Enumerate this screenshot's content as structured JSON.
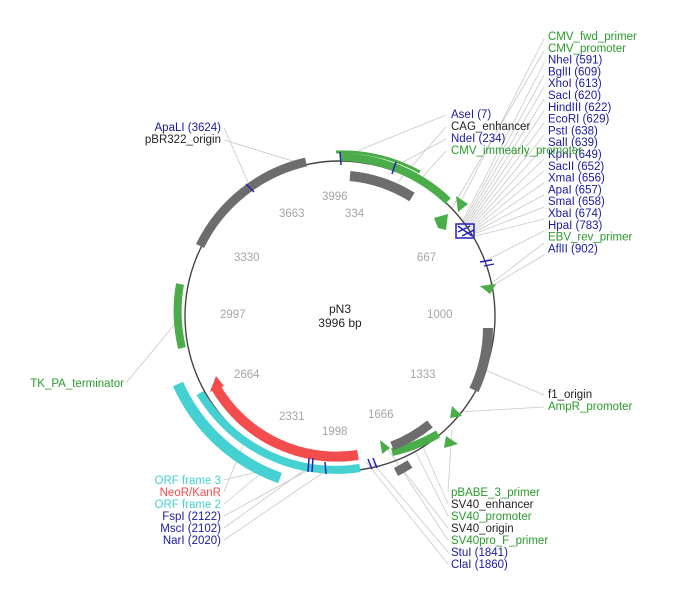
{
  "plasmid": {
    "name": "pN3",
    "size": "3996 bp",
    "length": 3996
  },
  "colors": {
    "enzyme": "#1a1aa0",
    "primer": "#2a9a2a",
    "promoter_fill": "#4aad4a",
    "backbone_gray": "#6d6d6d",
    "orf_cyan": "#45d1d1",
    "neo_red": "#f24c4c",
    "ring": "#444444",
    "tick_text": "#a5a5a5",
    "site_mark": "#2222bb"
  },
  "ticks": [
    "334",
    "667",
    "1000",
    "1333",
    "1666",
    "1998",
    "2331",
    "2664",
    "2997",
    "3330",
    "3663",
    "3996"
  ],
  "labels": {
    "top_right": [
      {
        "text": "CMV_fwd_primer",
        "type": "primer"
      },
      {
        "text": "CMV_promoter",
        "type": "primer"
      },
      {
        "text": "NheI (591)",
        "type": "enzyme"
      },
      {
        "text": "BglII (609)",
        "type": "enzyme"
      },
      {
        "text": "XhoI (613)",
        "type": "enzyme"
      },
      {
        "text": "SacI (620)",
        "type": "enzyme"
      },
      {
        "text": "HindIII (622)",
        "type": "enzyme"
      },
      {
        "text": "EcoRI (629)",
        "type": "enzyme"
      },
      {
        "text": "PstI (638)",
        "type": "enzyme"
      },
      {
        "text": "SalI (639)",
        "type": "enzyme"
      },
      {
        "text": "KpnI (649)",
        "type": "enzyme"
      },
      {
        "text": "SacII (652)",
        "type": "enzyme"
      },
      {
        "text": "XmaI (656)",
        "type": "enzyme"
      },
      {
        "text": "ApaI (657)",
        "type": "enzyme"
      },
      {
        "text": "SmaI (658)",
        "type": "enzyme"
      },
      {
        "text": "XbaI (674)",
        "type": "enzyme"
      },
      {
        "text": "HpaI (783)",
        "type": "enzyme"
      },
      {
        "text": "EBV_rev_primer",
        "type": "primer"
      },
      {
        "text": "AflII (902)",
        "type": "enzyme"
      }
    ],
    "top_mid": [
      {
        "text": "AseI (7)",
        "type": "enzyme"
      },
      {
        "text": "CAG_enhancer",
        "type": "plain"
      },
      {
        "text": "NdeI (234)",
        "type": "enzyme"
      },
      {
        "text": "CMV_immearly_promoter",
        "type": "primer"
      }
    ],
    "top_left": [
      {
        "text": "ApaLI (3624)",
        "type": "enzyme"
      },
      {
        "text": "pBR322_origin",
        "type": "plain"
      }
    ],
    "left": [
      {
        "text": "TK_PA_terminator",
        "type": "primer"
      }
    ],
    "right": [
      {
        "text": "f1_origin",
        "type": "plain"
      },
      {
        "text": "AmpR_promoter",
        "type": "primer"
      }
    ],
    "bottom_left": [
      {
        "text": "ORF frame 3",
        "type": "orf"
      },
      {
        "text": "NeoR/KanR",
        "type": "neo"
      },
      {
        "text": "ORF frame 2",
        "type": "orf"
      },
      {
        "text": "FspI (2122)",
        "type": "enzyme"
      },
      {
        "text": "MscI (2102)",
        "type": "enzyme"
      },
      {
        "text": "NarI (2020)",
        "type": "enzyme"
      }
    ],
    "bottom_right": [
      {
        "text": "pBABE_3_primer",
        "type": "primer"
      },
      {
        "text": "SV40_enhancer",
        "type": "plain"
      },
      {
        "text": "SV40_promoter",
        "type": "primer"
      },
      {
        "text": "SV40_origin",
        "type": "plain"
      },
      {
        "text": "SV40pro_F_primer",
        "type": "primer"
      },
      {
        "text": "StuI (1841)",
        "type": "enzyme"
      },
      {
        "text": "ClaI (1860)",
        "type": "enzyme"
      }
    ]
  }
}
